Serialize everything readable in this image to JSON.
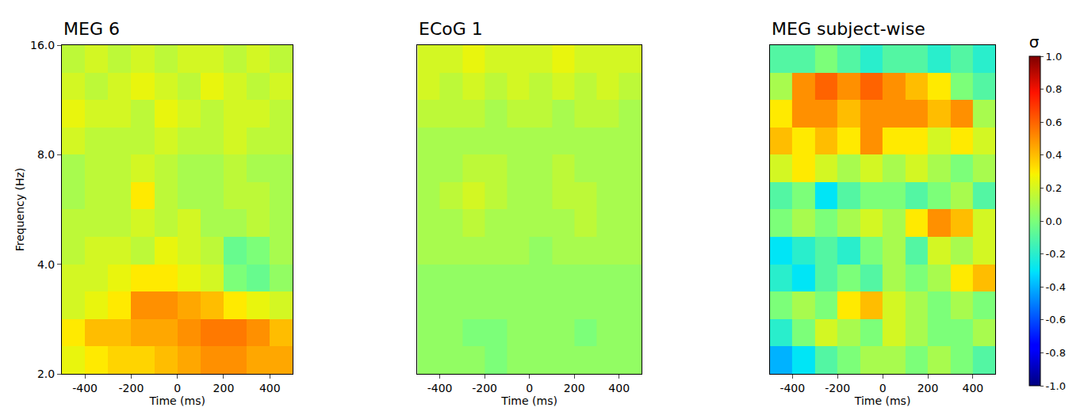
{
  "chart_data": [
    {
      "type": "heatmap",
      "title": "MEG 6",
      "xlabel": "Time (ms)",
      "ylabel": "Frequency (Hz)",
      "log": "y",
      "color": "jet",
      "x": [
        -500,
        -400,
        -300,
        -200,
        -100,
        0,
        100,
        200,
        300,
        400,
        500
      ],
      "y": [
        2,
        2.38,
        2.83,
        3.36,
        4,
        4.76,
        5.66,
        6.73,
        8,
        9.51,
        11.31,
        13.45,
        16
      ],
      "xlim": [
        -500,
        500
      ],
      "xticks": [
        -400,
        -200,
        0,
        200,
        400
      ],
      "ylim": [
        2,
        16
      ],
      "yticks": [
        {
          "value": 2,
          "label": "2.0"
        },
        {
          "value": 4,
          "label": "4.0"
        },
        {
          "value": 8,
          "label": "8.0"
        },
        {
          "value": 16,
          "label": "16.0"
        }
      ],
      "zlim": [
        -1,
        1
      ],
      "z": [
        [
          0.25,
          0.3,
          0.35,
          0.35,
          0.4,
          0.45,
          0.5,
          0.5,
          0.45,
          0.45
        ],
        [
          0.3,
          0.4,
          0.4,
          0.45,
          0.45,
          0.5,
          0.55,
          0.55,
          0.5,
          0.4
        ],
        [
          0.2,
          0.25,
          0.3,
          0.5,
          0.5,
          0.45,
          0.4,
          0.3,
          0.25,
          0.2
        ],
        [
          0.2,
          0.2,
          0.25,
          0.3,
          0.3,
          0.25,
          0.2,
          0.0,
          -0.05,
          0.05
        ],
        [
          0.15,
          0.2,
          0.2,
          0.15,
          0.25,
          0.2,
          0.15,
          -0.05,
          0.0,
          0.1
        ],
        [
          0.15,
          0.15,
          0.15,
          0.2,
          0.15,
          0.2,
          0.1,
          0.1,
          0.15,
          0.1
        ],
        [
          0.1,
          0.15,
          0.15,
          0.3,
          0.15,
          0.1,
          0.1,
          0.15,
          0.15,
          0.1
        ],
        [
          0.1,
          0.15,
          0.15,
          0.2,
          0.15,
          0.1,
          0.1,
          0.15,
          0.1,
          0.1
        ],
        [
          0.2,
          0.15,
          0.15,
          0.15,
          0.2,
          0.15,
          0.15,
          0.2,
          0.15,
          0.15
        ],
        [
          0.25,
          0.2,
          0.2,
          0.15,
          0.25,
          0.2,
          0.15,
          0.2,
          0.2,
          0.15
        ],
        [
          0.2,
          0.15,
          0.2,
          0.25,
          0.2,
          0.15,
          0.25,
          0.2,
          0.15,
          0.2
        ],
        [
          0.15,
          0.2,
          0.15,
          0.2,
          0.15,
          0.2,
          0.2,
          0.15,
          0.2,
          0.15
        ]
      ]
    },
    {
      "type": "heatmap",
      "title": "ECoG 1",
      "xlabel": "Time (ms)",
      "log": "y",
      "color": "jet",
      "tick_labels": "x",
      "x": [
        -500,
        -400,
        -300,
        -200,
        -100,
        0,
        100,
        200,
        300,
        400,
        500
      ],
      "y": [
        2,
        2.38,
        2.83,
        3.36,
        4,
        4.76,
        5.66,
        6.73,
        8,
        9.51,
        11.31,
        13.45,
        16
      ],
      "xlim": [
        -500,
        500
      ],
      "xticks": [
        -400,
        -200,
        0,
        200,
        400
      ],
      "ylim": [
        2,
        16
      ],
      "zlim": [
        -1,
        1
      ],
      "z": [
        [
          0.05,
          0.05,
          0.05,
          0.0,
          0.05,
          0.05,
          0.05,
          0.05,
          0.05,
          0.05
        ],
        [
          0.05,
          0.05,
          0.0,
          0.0,
          0.05,
          0.05,
          0.05,
          0.0,
          0.05,
          0.05
        ],
        [
          0.05,
          0.05,
          0.05,
          0.05,
          0.05,
          0.05,
          0.05,
          0.05,
          0.05,
          0.05
        ],
        [
          0.05,
          0.05,
          0.05,
          0.05,
          0.05,
          0.05,
          0.05,
          0.05,
          0.05,
          0.05
        ],
        [
          0.1,
          0.1,
          0.1,
          0.1,
          0.1,
          0.05,
          0.1,
          0.1,
          0.1,
          0.1
        ],
        [
          0.1,
          0.1,
          0.15,
          0.1,
          0.1,
          0.1,
          0.1,
          0.15,
          0.1,
          0.1
        ],
        [
          0.1,
          0.15,
          0.2,
          0.15,
          0.1,
          0.1,
          0.15,
          0.15,
          0.1,
          0.1
        ],
        [
          0.1,
          0.1,
          0.15,
          0.15,
          0.1,
          0.1,
          0.15,
          0.1,
          0.1,
          0.1
        ],
        [
          0.1,
          0.1,
          0.1,
          0.1,
          0.1,
          0.1,
          0.1,
          0.1,
          0.1,
          0.1
        ],
        [
          0.15,
          0.15,
          0.15,
          0.1,
          0.15,
          0.15,
          0.1,
          0.15,
          0.15,
          0.1
        ],
        [
          0.2,
          0.15,
          0.2,
          0.15,
          0.2,
          0.15,
          0.2,
          0.15,
          0.2,
          0.15
        ],
        [
          0.2,
          0.2,
          0.25,
          0.2,
          0.2,
          0.2,
          0.25,
          0.2,
          0.2,
          0.2
        ]
      ]
    },
    {
      "type": "heatmap",
      "title": "MEG subject-wise",
      "xlabel": "Time (ms)",
      "log": "y",
      "color": "jet",
      "tick_labels": "x",
      "x": [
        -500,
        -400,
        -300,
        -200,
        -100,
        0,
        100,
        200,
        300,
        400,
        500
      ],
      "y": [
        2,
        2.38,
        2.83,
        3.36,
        4,
        4.76,
        5.66,
        6.73,
        8,
        9.51,
        11.31,
        13.45,
        16
      ],
      "xlim": [
        -500,
        500
      ],
      "xticks": [
        -400,
        -200,
        0,
        200,
        400
      ],
      "ylim": [
        2,
        16
      ],
      "zlim": [
        -1,
        1
      ],
      "colorbar_title": "σ",
      "zticks": [
        {
          "value": -1,
          "label": "-1.0"
        },
        {
          "value": -0.8,
          "label": "-0.8"
        },
        {
          "value": -0.6,
          "label": "-0.6"
        },
        {
          "value": -0.4,
          "label": "-0.4"
        },
        {
          "value": -0.2,
          "label": "-0.2"
        },
        {
          "value": 0,
          "label": "0.0"
        },
        {
          "value": 0.2,
          "label": "0.2"
        },
        {
          "value": 0.4,
          "label": "0.4"
        },
        {
          "value": 0.6,
          "label": "0.6"
        },
        {
          "value": 0.8,
          "label": "0.8"
        },
        {
          "value": 1,
          "label": "1.0"
        }
      ],
      "z": [
        [
          -0.4,
          -0.3,
          -0.1,
          0.0,
          0.1,
          0.1,
          0.0,
          0.1,
          0.0,
          -0.1
        ],
        [
          -0.2,
          0.0,
          0.2,
          0.1,
          0.0,
          0.2,
          0.1,
          0.0,
          0.0,
          0.1
        ],
        [
          0.0,
          0.1,
          0.0,
          0.3,
          0.4,
          0.2,
          0.1,
          0.0,
          0.1,
          0.0
        ],
        [
          -0.2,
          -0.3,
          -0.1,
          0.0,
          -0.1,
          0.1,
          0.0,
          0.1,
          0.3,
          0.4
        ],
        [
          -0.3,
          -0.2,
          -0.1,
          -0.2,
          0.0,
          0.1,
          -0.1,
          0.2,
          0.1,
          0.2
        ],
        [
          0.0,
          0.1,
          0.0,
          0.1,
          0.2,
          0.1,
          0.3,
          0.5,
          0.4,
          0.2
        ],
        [
          -0.1,
          0.0,
          -0.3,
          -0.1,
          0.0,
          0.0,
          -0.1,
          0.0,
          0.1,
          -0.1
        ],
        [
          0.2,
          0.3,
          0.2,
          0.1,
          0.2,
          0.1,
          0.2,
          0.1,
          0.0,
          0.1
        ],
        [
          0.4,
          0.3,
          0.4,
          0.3,
          0.5,
          0.3,
          0.3,
          0.2,
          0.3,
          0.2
        ],
        [
          0.3,
          0.5,
          0.5,
          0.4,
          0.5,
          0.5,
          0.5,
          0.4,
          0.5,
          0.1
        ],
        [
          0.1,
          0.5,
          0.6,
          0.5,
          0.6,
          0.5,
          0.4,
          0.3,
          0.0,
          -0.1
        ],
        [
          -0.1,
          -0.1,
          0.0,
          -0.1,
          -0.2,
          -0.1,
          -0.1,
          -0.2,
          -0.1,
          -0.2
        ]
      ]
    }
  ]
}
